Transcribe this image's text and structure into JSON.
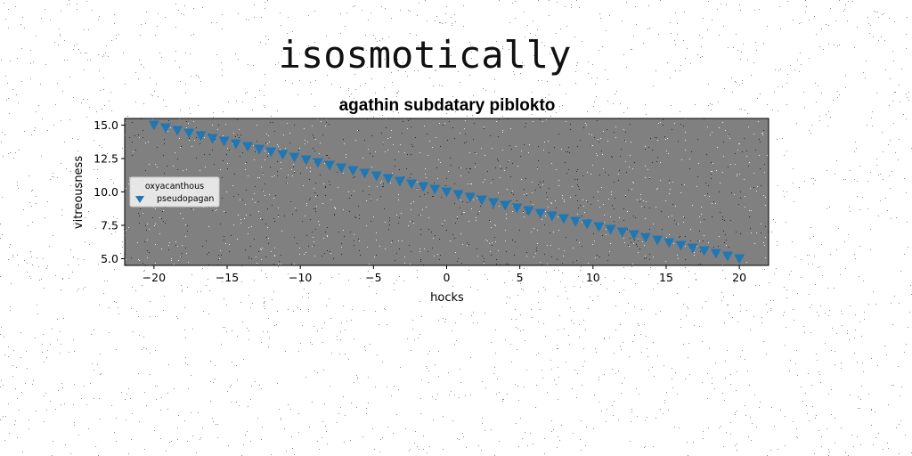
{
  "suptitle": "isosmotically",
  "chart_data": {
    "type": "scatter",
    "title": "agathin subdatary piblokto",
    "xlabel": "hocks",
    "ylabel": "vitreousness",
    "xlim": [
      -22,
      22
    ],
    "ylim": [
      4.5,
      15.5
    ],
    "xticks": [
      -20,
      -15,
      -10,
      -5,
      0,
      5,
      10,
      15,
      20
    ],
    "xtick_labels": [
      "−20",
      "−15",
      "−10",
      "−5",
      "0",
      "5",
      "10",
      "15",
      "20"
    ],
    "yticks": [
      5.0,
      7.5,
      10.0,
      12.5,
      15.0
    ],
    "ytick_labels": [
      "5.0",
      "7.5",
      "10.0",
      "12.5",
      "15.0"
    ],
    "grid": false,
    "background": "#808080",
    "legend": {
      "title": "oxyacanthous",
      "placement": "center-left"
    },
    "series": [
      {
        "name": "pseudopagan",
        "marker": "triangle-down-icon",
        "color": "#1f77b4",
        "x": [
          -20.0,
          -19.2,
          -18.4,
          -17.6,
          -16.8,
          -16.0,
          -15.2,
          -14.4,
          -13.6,
          -12.8,
          -12.0,
          -11.2,
          -10.4,
          -9.6,
          -8.8,
          -8.0,
          -7.2,
          -6.4,
          -5.6,
          -4.8,
          -4.0,
          -3.2,
          -2.4,
          -1.6,
          -0.8,
          0.0,
          0.8,
          1.6,
          2.4,
          3.2,
          4.0,
          4.8,
          5.6,
          6.4,
          7.2,
          8.0,
          8.8,
          9.6,
          10.4,
          11.2,
          12.0,
          12.8,
          13.6,
          14.4,
          15.2,
          16.0,
          16.8,
          17.6,
          18.4,
          19.2,
          20.0
        ],
        "y": [
          15.0,
          14.8,
          14.6,
          14.4,
          14.2,
          14.0,
          13.8,
          13.6,
          13.4,
          13.2,
          13.0,
          12.8,
          12.6,
          12.4,
          12.2,
          12.0,
          11.8,
          11.6,
          11.4,
          11.2,
          11.0,
          10.8,
          10.6,
          10.4,
          10.2,
          10.0,
          9.8,
          9.6,
          9.4,
          9.2,
          9.0,
          8.8,
          8.6,
          8.4,
          8.2,
          8.0,
          7.8,
          7.6,
          7.4,
          7.2,
          7.0,
          6.8,
          6.6,
          6.4,
          6.2,
          6.0,
          5.8,
          5.6,
          5.4,
          5.2,
          5.0
        ]
      }
    ]
  }
}
